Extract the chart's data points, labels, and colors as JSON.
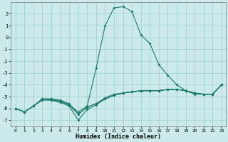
{
  "x": [
    0,
    1,
    2,
    3,
    4,
    5,
    6,
    7,
    8,
    9,
    10,
    11,
    12,
    13,
    14,
    15,
    16,
    17,
    18,
    19,
    20,
    21,
    22,
    23
  ],
  "line1": [
    -6.0,
    -6.3,
    -5.8,
    -5.2,
    -5.2,
    -5.4,
    -5.7,
    -6.3,
    -5.8,
    -2.6,
    1.0,
    2.5,
    2.6,
    2.2,
    0.2,
    -0.5,
    -2.3,
    -3.2,
    -4.0,
    -4.5,
    -4.8,
    -4.8,
    -4.8,
    -4.0
  ],
  "line2": [
    -6.0,
    -6.3,
    -5.8,
    -5.2,
    -5.2,
    -5.3,
    -5.6,
    -6.5,
    -5.9,
    -5.6,
    -5.2,
    -4.9,
    -4.7,
    -4.6,
    -4.5,
    -4.5,
    -4.5,
    -4.4,
    -4.4,
    -4.5,
    -4.7,
    -4.8,
    -4.8,
    -4.0
  ],
  "line3": [
    -6.0,
    -6.3,
    -5.8,
    -5.2,
    -5.3,
    -5.5,
    -5.8,
    -7.0,
    -6.1,
    -5.7,
    -5.2,
    -4.9,
    -4.7,
    -4.6,
    -4.5,
    -4.5,
    -4.5,
    -4.4,
    -4.4,
    -4.5,
    -4.7,
    -4.8,
    -4.8,
    -4.0
  ],
  "line4": [
    -6.0,
    -6.3,
    -5.8,
    -5.3,
    -5.3,
    -5.4,
    -5.7,
    -6.5,
    -5.9,
    -5.6,
    -5.1,
    -4.8,
    -4.7,
    -4.6,
    -4.5,
    -4.5,
    -4.5,
    -4.4,
    -4.4,
    -4.5,
    -4.7,
    -4.8,
    -4.8,
    -4.0
  ],
  "color": "#1a7a6e",
  "bg_color": "#cceaea",
  "grid_color": "#99cccc",
  "xlabel": "Humidex (Indice chaleur)",
  "ylim": [
    -7.5,
    3.0
  ],
  "xlim": [
    -0.5,
    23.5
  ],
  "yticks": [
    2,
    1,
    0,
    -1,
    -2,
    -3,
    -4,
    -5,
    -6,
    -7
  ],
  "xticks": [
    0,
    1,
    2,
    3,
    4,
    5,
    6,
    7,
    8,
    9,
    10,
    11,
    12,
    13,
    14,
    15,
    16,
    17,
    18,
    19,
    20,
    21,
    22,
    23
  ]
}
